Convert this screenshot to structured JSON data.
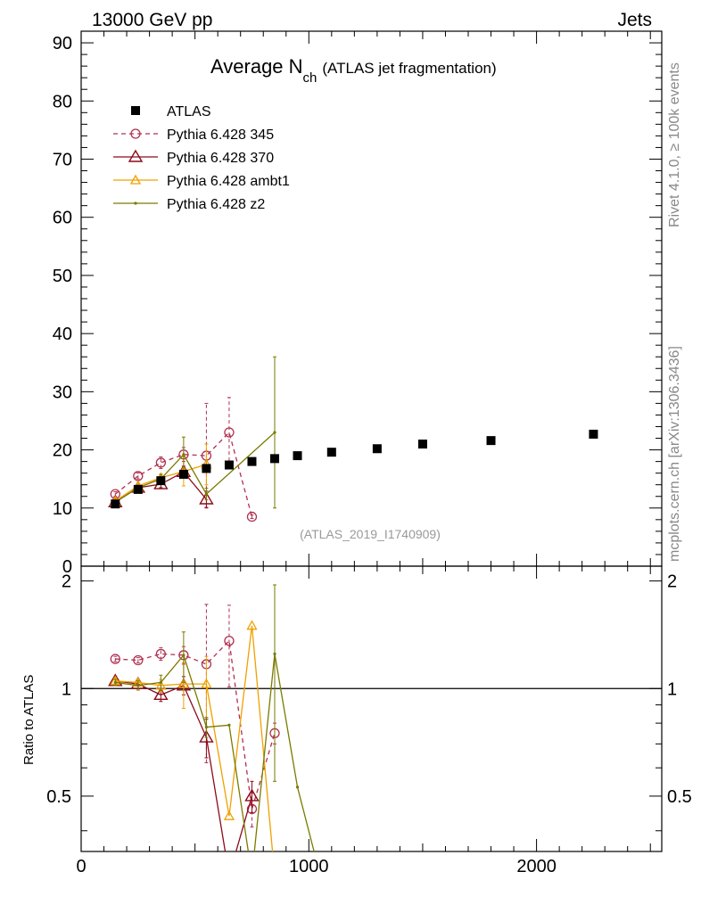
{
  "header": {
    "left": "13000 GeV pp",
    "right": "Jets"
  },
  "side_labels": {
    "top": "Rivet 4.1.0, ≥ 100k events",
    "bottom": "mcplots.cern.ch [arXiv:1306.3436]"
  },
  "colors": {
    "atlas": "#000000",
    "p345": "#b03050",
    "p370": "#8b0a1a",
    "ambt1": "#f0a000",
    "z2": "#7a7a00"
  },
  "chart_data": {
    "type": "scatter",
    "title_main": "Average N",
    "title_sub": "ch",
    "title_suffix": "(ATLAS jet fragmentation)",
    "analysis": "(ATLAS_2019_I1740909)",
    "ratio_ylabel": "Ratio to ATLAS",
    "xlim": [
      0,
      2550
    ],
    "ylim": [
      0,
      92
    ],
    "ratio_ylim": [
      0.35,
      2.2
    ],
    "x_ticks": [
      "0",
      "1000",
      "2000"
    ],
    "y_ticks": [
      "0",
      "10",
      "20",
      "30",
      "40",
      "50",
      "60",
      "70",
      "80",
      "90"
    ],
    "ratio_ticks": [
      "0.5",
      "1",
      "2"
    ],
    "legend": [
      "ATLAS",
      "Pythia 6.428 345",
      "Pythia 6.428 370",
      "Pythia 6.428 ambt1",
      "Pythia 6.428 z2"
    ],
    "atlas": {
      "x": [
        150,
        250,
        350,
        450,
        550,
        650,
        750,
        850,
        950,
        1100,
        1300,
        1500,
        1800,
        2250
      ],
      "y": [
        10.7,
        13.2,
        14.7,
        15.8,
        16.8,
        17.4,
        18.0,
        18.5,
        19.0,
        19.6,
        20.2,
        21.0,
        21.6,
        22.7
      ]
    },
    "series": [
      {
        "name": "Pythia 6.428 345",
        "key": "p345",
        "dash": true,
        "marker": "circle",
        "x": [
          150,
          250,
          350,
          450,
          550,
          650,
          750
        ],
        "y": [
          12.4,
          15.5,
          17.8,
          19.2,
          19.0,
          23.0,
          8.5
        ],
        "err": [
          0.4,
          0.5,
          1.0,
          1.2,
          9.0,
          6.0,
          0.3
        ],
        "ratio_x": [
          150,
          250,
          350,
          450,
          550,
          650,
          750,
          850
        ],
        "ratio": [
          1.21,
          1.2,
          1.25,
          1.24,
          1.17,
          1.36,
          0.46,
          0.75
        ],
        "ratio_err": [
          0.02,
          0.02,
          0.05,
          0.07,
          0.55,
          0.35,
          0.05,
          0.05
        ]
      },
      {
        "name": "Pythia 6.428 370",
        "key": "p370",
        "dash": false,
        "marker": "triangle",
        "x": [
          150,
          250,
          350,
          450,
          550
        ],
        "y": [
          11.0,
          13.5,
          14.1,
          16.2,
          11.5
        ],
        "err": [
          0.4,
          0.5,
          0.6,
          1.0,
          1.4
        ],
        "ratio_x": [
          150,
          250,
          350,
          450,
          550,
          650,
          750
        ],
        "ratio": [
          1.05,
          1.03,
          0.96,
          1.02,
          0.73,
          0.3,
          0.5
        ],
        "ratio_err": [
          0.02,
          0.03,
          0.04,
          0.06,
          0.09,
          0.0,
          0.05
        ]
      },
      {
        "name": "Pythia 6.428 ambt1",
        "key": "ambt1",
        "dash": false,
        "marker": "triangle-small",
        "x": [
          150,
          250,
          350,
          450,
          550
        ],
        "y": [
          11.2,
          13.8,
          15.2,
          16.3,
          17.5
        ],
        "err": [
          0.3,
          0.4,
          0.6,
          2.5,
          3.5
        ],
        "ratio_x": [
          150,
          250,
          350,
          450,
          550,
          650,
          750,
          850
        ],
        "ratio": [
          1.05,
          1.04,
          1.02,
          1.03,
          1.03,
          0.44,
          1.5,
          0.3
        ],
        "ratio_err": [
          0.02,
          0.02,
          0.04,
          0.15,
          0.2,
          0.0,
          0.0,
          0.0
        ]
      },
      {
        "name": "Pythia 6.428 z2",
        "key": "z2",
        "dash": false,
        "marker": "dot",
        "x": [
          150,
          250,
          350,
          450,
          550,
          850
        ],
        "y": [
          11.0,
          13.5,
          15.0,
          19.2,
          12.4,
          23.0
        ],
        "err": [
          0.3,
          0.4,
          0.8,
          3.0,
          1.0,
          13.0
        ],
        "ratio_x": [
          150,
          250,
          350,
          450,
          550,
          650,
          750,
          850,
          950,
          1050
        ],
        "ratio": [
          1.04,
          1.02,
          1.04,
          1.24,
          0.78,
          0.79,
          0.3,
          1.25,
          0.53,
          0.3
        ],
        "ratio_err": [
          0.02,
          0.03,
          0.05,
          0.2,
          0.05,
          0.0,
          0.0,
          0.7,
          0.0,
          0.0
        ]
      }
    ]
  }
}
